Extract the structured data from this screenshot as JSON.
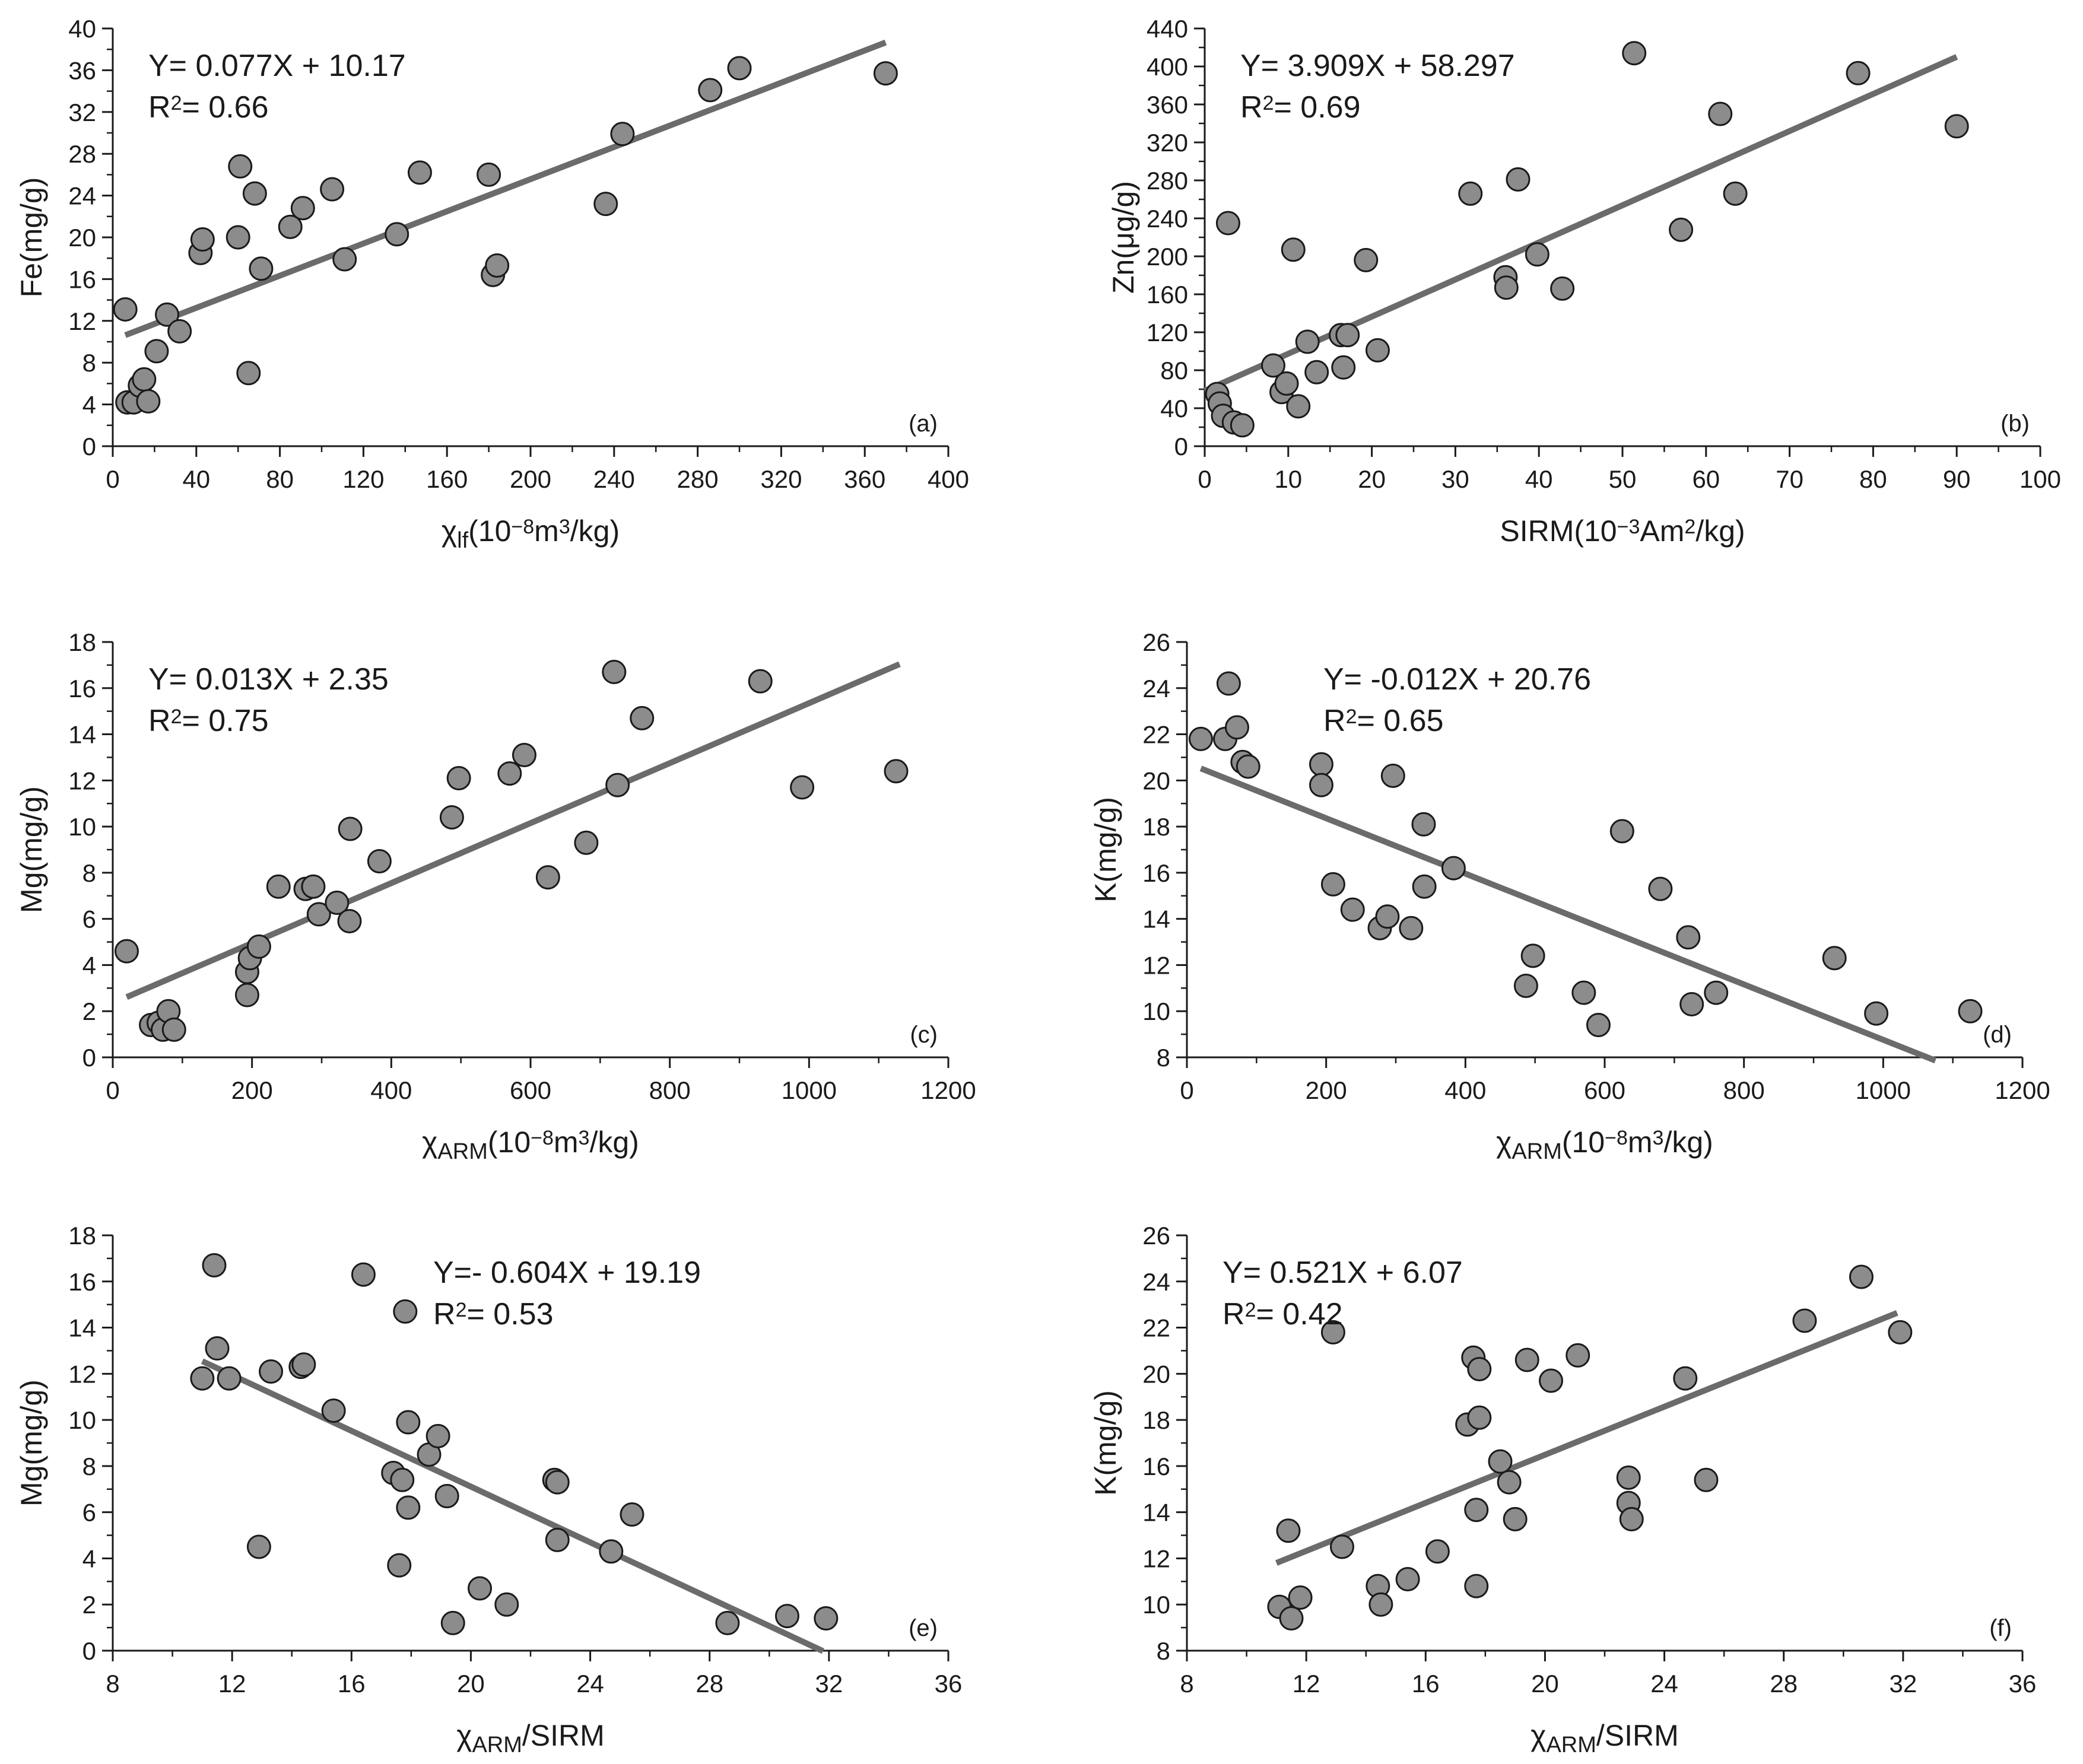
{
  "chart_data": [
    {
      "type": "scatter",
      "panel_label": "(a)",
      "xlabel": "χlf(10⁻⁸m³/kg)",
      "xlabel_parts": {
        "sym": "χ",
        "sub": "lf",
        "pre": "(10",
        "sup1": "−8",
        "mid": "m",
        "sup2": "3",
        "post": "/kg)"
      },
      "ylabel": "Fe(mg/g)",
      "xlim": [
        0,
        400
      ],
      "ylim": [
        0,
        40
      ],
      "xticks": [
        0,
        40,
        80,
        120,
        160,
        200,
        240,
        280,
        320,
        360,
        400
      ],
      "yticks": [
        0,
        4,
        8,
        12,
        16,
        20,
        24,
        28,
        32,
        36,
        40
      ],
      "equation": "Y= 0.077X + 10.17",
      "r2_prefix": "R",
      "r2_sup": "2",
      "r2_value": "= 0.66",
      "slope": 0.077,
      "intercept": 10.17,
      "fit_x": [
        6,
        370
      ],
      "points": [
        [
          6,
          13.1
        ],
        [
          7,
          4.2
        ],
        [
          10,
          4.2
        ],
        [
          13,
          5.8
        ],
        [
          15,
          6.4
        ],
        [
          17,
          4.3
        ],
        [
          21,
          9.1
        ],
        [
          26,
          12.6
        ],
        [
          32,
          11.0
        ],
        [
          42,
          18.5
        ],
        [
          43,
          19.8
        ],
        [
          60,
          20.0
        ],
        [
          61,
          26.8
        ],
        [
          65,
          7.0
        ],
        [
          68,
          24.2
        ],
        [
          71,
          17.0
        ],
        [
          85,
          21.0
        ],
        [
          91,
          22.8
        ],
        [
          105,
          24.6
        ],
        [
          111,
          17.9
        ],
        [
          136,
          20.3
        ],
        [
          147,
          26.2
        ],
        [
          180,
          26.0
        ],
        [
          182,
          16.4
        ],
        [
          184,
          17.3
        ],
        [
          236,
          23.2
        ],
        [
          244,
          29.9
        ],
        [
          286,
          34.1
        ],
        [
          300,
          36.2
        ],
        [
          370,
          35.7
        ]
      ]
    },
    {
      "type": "scatter",
      "panel_label": "(b)",
      "xlabel": "SIRM(10⁻³Am²/kg)",
      "xlabel_parts": {
        "sym": "",
        "sub": "",
        "pre": "SIRM(10",
        "sup1": "−3",
        "mid": "Am",
        "sup2": "2",
        "post": "/kg)"
      },
      "ylabel": "Zn(μg/g)",
      "xlim": [
        0,
        100
      ],
      "ylim": [
        0,
        440
      ],
      "xticks": [
        0,
        10,
        20,
        30,
        40,
        50,
        60,
        70,
        80,
        90,
        100
      ],
      "yticks": [
        0,
        40,
        80,
        120,
        160,
        200,
        240,
        280,
        320,
        360,
        400,
        440
      ],
      "equation": "Y= 3.909X + 58.297",
      "r2_prefix": "R",
      "r2_sup": "2",
      "r2_value": "= 0.69",
      "slope": 3.909,
      "intercept": 58.297,
      "fit_x": [
        0,
        90
      ],
      "points": [
        [
          1.5,
          55
        ],
        [
          1.8,
          45
        ],
        [
          2.2,
          32
        ],
        [
          2.8,
          235
        ],
        [
          3.5,
          25
        ],
        [
          4.5,
          22
        ],
        [
          8.2,
          85
        ],
        [
          9.2,
          57
        ],
        [
          9.8,
          66
        ],
        [
          10.6,
          207
        ],
        [
          11.2,
          42
        ],
        [
          12.3,
          110
        ],
        [
          13.4,
          78
        ],
        [
          16.3,
          117
        ],
        [
          16.6,
          83
        ],
        [
          17.1,
          117
        ],
        [
          19.3,
          196
        ],
        [
          20.7,
          101
        ],
        [
          31.8,
          266
        ],
        [
          36.0,
          178
        ],
        [
          36.1,
          167
        ],
        [
          37.5,
          281
        ],
        [
          39.8,
          202
        ],
        [
          42.8,
          166
        ],
        [
          51.4,
          414
        ],
        [
          57.0,
          228
        ],
        [
          61.7,
          350
        ],
        [
          63.5,
          266
        ],
        [
          78.2,
          393
        ],
        [
          90.0,
          337
        ]
      ]
    },
    {
      "type": "scatter",
      "panel_label": "(c)",
      "xlabel": "χARM(10⁻⁸m³/kg)",
      "xlabel_parts": {
        "sym": "χ",
        "sub": "ARM",
        "pre": "(10",
        "sup1": "−8",
        "mid": "m",
        "sup2": "3",
        "post": "/kg)"
      },
      "ylabel": "Mg(mg/g)",
      "xlim": [
        0,
        1200
      ],
      "ylim": [
        0,
        18
      ],
      "xticks": [
        0,
        200,
        400,
        600,
        800,
        1000,
        1200
      ],
      "yticks": [
        0,
        2,
        4,
        6,
        8,
        10,
        12,
        14,
        16,
        18
      ],
      "equation": "Y= 0.013X + 2.35",
      "r2_prefix": "R",
      "r2_sup": "2",
      "r2_value": "= 0.75",
      "slope": 0.013,
      "intercept": 2.35,
      "fit_x": [
        20,
        1130
      ],
      "points": [
        [
          20,
          4.6
        ],
        [
          55,
          1.4
        ],
        [
          66,
          1.5
        ],
        [
          72,
          1.2
        ],
        [
          80,
          2.0
        ],
        [
          88,
          1.2
        ],
        [
          193,
          3.7
        ],
        [
          193,
          2.7
        ],
        [
          197,
          4.3
        ],
        [
          210,
          4.8
        ],
        [
          238,
          7.4
        ],
        [
          277,
          7.3
        ],
        [
          288,
          7.4
        ],
        [
          296,
          6.2
        ],
        [
          322,
          6.7
        ],
        [
          340,
          5.9
        ],
        [
          341,
          9.9
        ],
        [
          383,
          8.5
        ],
        [
          487,
          10.4
        ],
        [
          497,
          12.1
        ],
        [
          570,
          12.3
        ],
        [
          591,
          13.1
        ],
        [
          625,
          7.8
        ],
        [
          680,
          9.3
        ],
        [
          720,
          16.7
        ],
        [
          725,
          11.8
        ],
        [
          760,
          14.7
        ],
        [
          930,
          16.3
        ],
        [
          990,
          11.7
        ],
        [
          1125,
          12.4
        ]
      ]
    },
    {
      "type": "scatter",
      "panel_label": "(d)",
      "xlabel": "χARM(10⁻⁸m³/kg)",
      "xlabel_parts": {
        "sym": "χ",
        "sub": "ARM",
        "pre": "(10",
        "sup1": "−8",
        "mid": "m",
        "sup2": "3",
        "post": "/kg)"
      },
      "ylabel": "K(mg/g)",
      "xlim": [
        0,
        1200
      ],
      "ylim": [
        8,
        26
      ],
      "xticks": [
        0,
        200,
        400,
        600,
        800,
        1000,
        1200
      ],
      "yticks": [
        8,
        10,
        12,
        14,
        16,
        18,
        20,
        22,
        24,
        26
      ],
      "equation": "Y= -0.012X + 20.76",
      "r2_prefix": "R",
      "r2_sup": "2",
      "r2_value": "= 0.65",
      "slope": -0.012,
      "intercept": 20.76,
      "fit_x": [
        20,
        1075
      ],
      "points": [
        [
          20,
          21.8
        ],
        [
          55,
          21.8
        ],
        [
          60,
          24.2
        ],
        [
          72,
          22.3
        ],
        [
          80,
          20.8
        ],
        [
          88,
          20.6
        ],
        [
          193,
          20.7
        ],
        [
          193,
          19.8
        ],
        [
          210,
          15.5
        ],
        [
          238,
          14.4
        ],
        [
          277,
          13.6
        ],
        [
          288,
          14.1
        ],
        [
          296,
          20.2
        ],
        [
          322,
          13.6
        ],
        [
          340,
          18.1
        ],
        [
          341,
          15.4
        ],
        [
          383,
          16.2
        ],
        [
          487,
          11.1
        ],
        [
          497,
          12.4
        ],
        [
          570,
          10.8
        ],
        [
          591,
          9.4
        ],
        [
          625,
          17.8
        ],
        [
          680,
          15.3
        ],
        [
          720,
          13.2
        ],
        [
          725,
          10.3
        ],
        [
          760,
          10.8
        ],
        [
          930,
          12.3
        ],
        [
          990,
          9.9
        ],
        [
          1125,
          10.0
        ]
      ]
    },
    {
      "type": "scatter",
      "panel_label": "(e)",
      "xlabel": "χARM/SIRM",
      "xlabel_parts": {
        "sym": "χ",
        "sub": "ARM",
        "pre": "/SIRM",
        "sup1": "",
        "mid": "",
        "sup2": "",
        "post": ""
      },
      "ylabel": "Mg(mg/g)",
      "xlim": [
        8,
        36
      ],
      "ylim": [
        0,
        18
      ],
      "xticks": [
        8,
        12,
        16,
        20,
        24,
        28,
        32,
        36
      ],
      "yticks": [
        0,
        2,
        4,
        6,
        8,
        10,
        12,
        14,
        16,
        18
      ],
      "equation": "Y=- 0.604X + 19.19",
      "r2_prefix": "R",
      "r2_sup": "2",
      "r2_value": "= 0.53",
      "slope": -0.604,
      "intercept": 19.19,
      "fit_x": [
        11,
        31.8
      ],
      "points": [
        [
          11.0,
          11.8
        ],
        [
          11.4,
          16.7
        ],
        [
          11.5,
          13.1
        ],
        [
          11.9,
          11.8
        ],
        [
          12.9,
          4.5
        ],
        [
          13.3,
          12.1
        ],
        [
          14.3,
          12.3
        ],
        [
          14.4,
          12.4
        ],
        [
          15.4,
          10.4
        ],
        [
          16.4,
          16.3
        ],
        [
          17.4,
          7.7
        ],
        [
          17.6,
          3.7
        ],
        [
          17.7,
          7.4
        ],
        [
          17.8,
          14.7
        ],
        [
          17.9,
          6.2
        ],
        [
          17.9,
          9.9
        ],
        [
          18.6,
          8.5
        ],
        [
          18.9,
          9.3
        ],
        [
          19.2,
          6.7
        ],
        [
          19.4,
          1.2
        ],
        [
          20.3,
          2.7
        ],
        [
          21.2,
          2.0
        ],
        [
          22.8,
          7.4
        ],
        [
          22.9,
          7.3
        ],
        [
          22.9,
          4.8
        ],
        [
          24.7,
          4.3
        ],
        [
          25.4,
          5.9
        ],
        [
          28.6,
          1.2
        ],
        [
          30.6,
          1.5
        ],
        [
          31.9,
          1.4
        ]
      ]
    },
    {
      "type": "scatter",
      "panel_label": "(f)",
      "xlabel": "χARM/SIRM",
      "xlabel_parts": {
        "sym": "χ",
        "sub": "ARM",
        "pre": "/SIRM",
        "sup1": "",
        "mid": "",
        "sup2": "",
        "post": ""
      },
      "ylabel": "K(mg/g)",
      "xlim": [
        8,
        36
      ],
      "ylim": [
        8,
        26
      ],
      "xticks": [
        8,
        12,
        16,
        20,
        24,
        28,
        32,
        36
      ],
      "yticks": [
        8,
        10,
        12,
        14,
        16,
        18,
        20,
        22,
        24,
        26
      ],
      "equation": "Y= 0.521X + 6.07",
      "r2_prefix": "R",
      "r2_sup": "2",
      "r2_value": "= 0.42",
      "slope": 0.521,
      "intercept": 6.07,
      "fit_x": [
        11,
        31.8
      ],
      "points": [
        [
          11.1,
          9.9
        ],
        [
          11.4,
          13.2
        ],
        [
          11.5,
          9.4
        ],
        [
          11.8,
          10.3
        ],
        [
          12.9,
          21.8
        ],
        [
          13.2,
          12.5
        ],
        [
          14.4,
          10.8
        ],
        [
          14.5,
          10.0
        ],
        [
          15.4,
          11.1
        ],
        [
          16.4,
          12.3
        ],
        [
          17.4,
          17.8
        ],
        [
          17.6,
          20.7
        ],
        [
          17.7,
          14.1
        ],
        [
          17.7,
          10.8
        ],
        [
          17.8,
          20.2
        ],
        [
          17.8,
          18.1
        ],
        [
          18.5,
          16.2
        ],
        [
          18.8,
          15.3
        ],
        [
          19.0,
          13.7
        ],
        [
          19.4,
          20.6
        ],
        [
          20.2,
          19.7
        ],
        [
          21.1,
          20.8
        ],
        [
          22.8,
          15.5
        ],
        [
          22.8,
          14.4
        ],
        [
          22.9,
          13.7
        ],
        [
          24.7,
          19.8
        ],
        [
          25.4,
          15.4
        ],
        [
          28.7,
          22.3
        ],
        [
          30.6,
          24.2
        ],
        [
          31.9,
          21.8
        ]
      ]
    }
  ]
}
